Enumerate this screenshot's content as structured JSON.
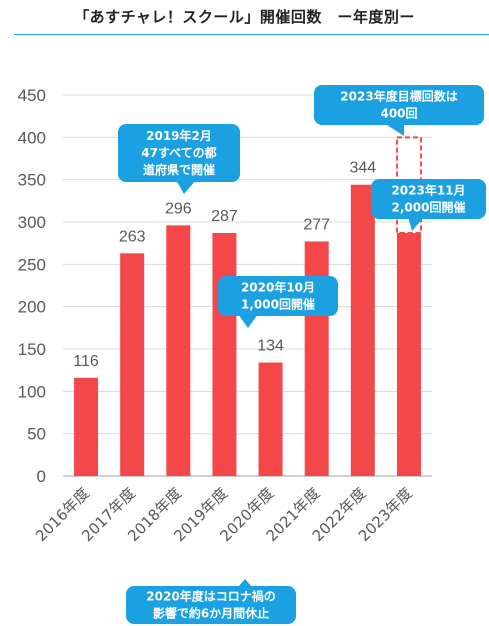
{
  "header": {
    "title": "「あすチャレ！スクール」開催回数　ー年度別ー"
  },
  "colors": {
    "bar": "#f4474a",
    "accent": "#1ba1e2",
    "rule": "#29a8e0",
    "axis_text": "#595959"
  },
  "chart_data": {
    "type": "bar",
    "categories": [
      "2016年度",
      "2017年度",
      "2018年度",
      "2019年度",
      "2020年度",
      "2021年度",
      "2022年度",
      "2023年度"
    ],
    "values": [
      116,
      263,
      296,
      287,
      134,
      277,
      344,
      287
    ],
    "value_labels": [
      "116",
      "263",
      "296",
      "287",
      "134",
      "277",
      "344",
      ""
    ],
    "target": {
      "category": "2023年度",
      "value": 400
    },
    "ylim": [
      0,
      450
    ],
    "yticks": [
      0,
      50,
      100,
      150,
      200,
      250,
      300,
      350,
      400,
      450
    ],
    "grid": true,
    "annotations": [
      {
        "id": "a2019",
        "lines": [
          "2019年2月",
          "47すべての都",
          "道府県で開催"
        ]
      },
      {
        "id": "a2020",
        "lines": [
          "2020年10月",
          "1,000回開催"
        ]
      },
      {
        "id": "a2023target",
        "lines": [
          "2023年度目標回数は",
          "400回"
        ]
      },
      {
        "id": "a2023",
        "lines": [
          "2023年11月",
          "2,000回開催"
        ]
      },
      {
        "id": "acovid",
        "lines": [
          "2020年度はコロナ禍の",
          "影響で約6か月間休止"
        ]
      }
    ]
  }
}
